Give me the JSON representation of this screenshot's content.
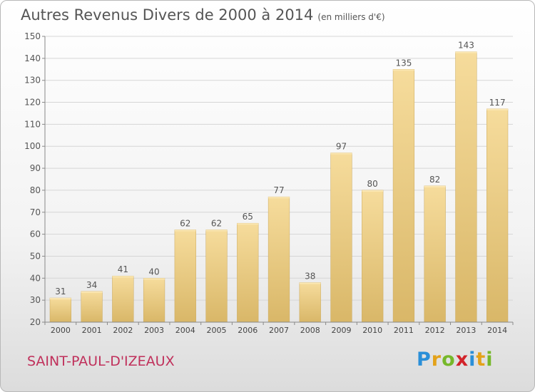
{
  "header": {
    "title": "Autres Revenus Divers de 2000 à 2014",
    "unit": "(en milliers d'€)"
  },
  "commune": "SAINT-PAUL-D'IZEAUX",
  "logo": {
    "text": "Proxiti"
  },
  "colors": {
    "bar": "#e9c97c",
    "bar_light": "#f6dc9c",
    "bar_dark": "#d9b768",
    "text": "#555555",
    "commune": "#c0305b"
  },
  "chart_data": {
    "type": "bar",
    "title": "Autres Revenus Divers de 2000 à 2014",
    "subtitle": "(en milliers d'€)",
    "categories": [
      "2000",
      "2001",
      "2002",
      "2003",
      "2004",
      "2005",
      "2006",
      "2007",
      "2008",
      "2009",
      "2010",
      "2011",
      "2012",
      "2013",
      "2014"
    ],
    "values": [
      31,
      34,
      41,
      40,
      62,
      62,
      65,
      77,
      38,
      97,
      80,
      135,
      82,
      143,
      117
    ],
    "ylim": [
      20,
      150
    ],
    "yticks": [
      20,
      30,
      40,
      50,
      60,
      70,
      80,
      90,
      100,
      110,
      120,
      130,
      140,
      150
    ],
    "grid": true,
    "xlabel": "",
    "ylabel": ""
  }
}
